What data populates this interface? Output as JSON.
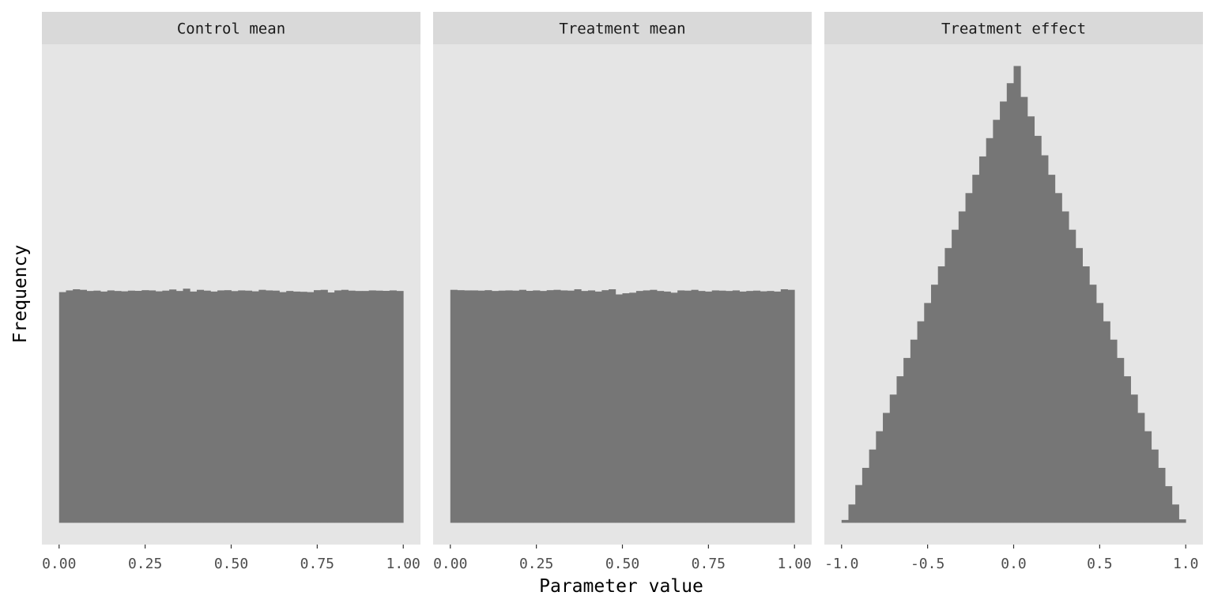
{
  "chart_data": {
    "type": "bar",
    "xlabel": "Parameter value",
    "ylabel": "Frequency",
    "colors": {
      "bar": "#767676",
      "panel_bg": "#e5e5e5",
      "strip_bg": "#d9d9d9"
    },
    "panels": [
      {
        "title": "Control mean",
        "xlim": [
          -0.05,
          1.05
        ],
        "x_ticks": [
          0,
          0.25,
          0.5,
          0.75,
          1
        ],
        "x_tick_labels": [
          "0.00",
          "0.25",
          "0.50",
          "0.75",
          "1.00"
        ],
        "bin_start": 0,
        "bin_width": 0.02,
        "values": [
          2015,
          2030,
          2040,
          2035,
          2025,
          2028,
          2020,
          2030,
          2025,
          2022,
          2028,
          2026,
          2032,
          2030,
          2022,
          2028,
          2038,
          2025,
          2045,
          2020,
          2035,
          2028,
          2020,
          2030,
          2032,
          2024,
          2030,
          2028,
          2022,
          2035,
          2030,
          2028,
          2015,
          2025,
          2020,
          2018,
          2015,
          2032,
          2035,
          2012,
          2030,
          2035,
          2028,
          2025,
          2025,
          2030,
          2028,
          2026,
          2030,
          2025
        ]
      },
      {
        "title": "Treatment mean",
        "xlim": [
          -0.05,
          1.05
        ],
        "x_ticks": [
          0,
          0.25,
          0.5,
          0.75,
          1
        ],
        "x_tick_labels": [
          "0.00",
          "0.25",
          "0.50",
          "0.75",
          "1.00"
        ],
        "bin_start": 0,
        "bin_width": 0.02,
        "values": [
          2035,
          2032,
          2030,
          2030,
          2028,
          2032,
          2025,
          2028,
          2030,
          2028,
          2035,
          2026,
          2030,
          2025,
          2032,
          2035,
          2030,
          2028,
          2040,
          2025,
          2030,
          2020,
          2032,
          2040,
          1995,
          2005,
          2010,
          2025,
          2030,
          2035,
          2025,
          2020,
          2010,
          2030,
          2028,
          2035,
          2025,
          2020,
          2030,
          2028,
          2025,
          2030,
          2020,
          2025,
          2028,
          2022,
          2025,
          2020,
          2040,
          2035
        ]
      },
      {
        "title": "Treatment effect",
        "xlim": [
          -1.1,
          1.1
        ],
        "x_ticks": [
          -1,
          -0.5,
          0,
          0.5,
          1
        ],
        "x_tick_labels": [
          "-1.0",
          "-0.5",
          "0.0",
          "0.5",
          "1.0"
        ],
        "bin_start": -1,
        "bin_width": 0.04,
        "values": [
          25,
          160,
          330,
          480,
          640,
          800,
          960,
          1120,
          1280,
          1440,
          1600,
          1760,
          1920,
          2080,
          2240,
          2400,
          2560,
          2720,
          2880,
          3040,
          3200,
          3360,
          3520,
          3680,
          3840,
          3990,
          3720,
          3550,
          3380,
          3210,
          3040,
          2880,
          2720,
          2560,
          2400,
          2240,
          2080,
          1920,
          1760,
          1600,
          1440,
          1280,
          1120,
          960,
          800,
          640,
          480,
          320,
          160,
          30
        ]
      }
    ],
    "ylim": [
      -190,
      4180
    ],
    "grid": true
  }
}
